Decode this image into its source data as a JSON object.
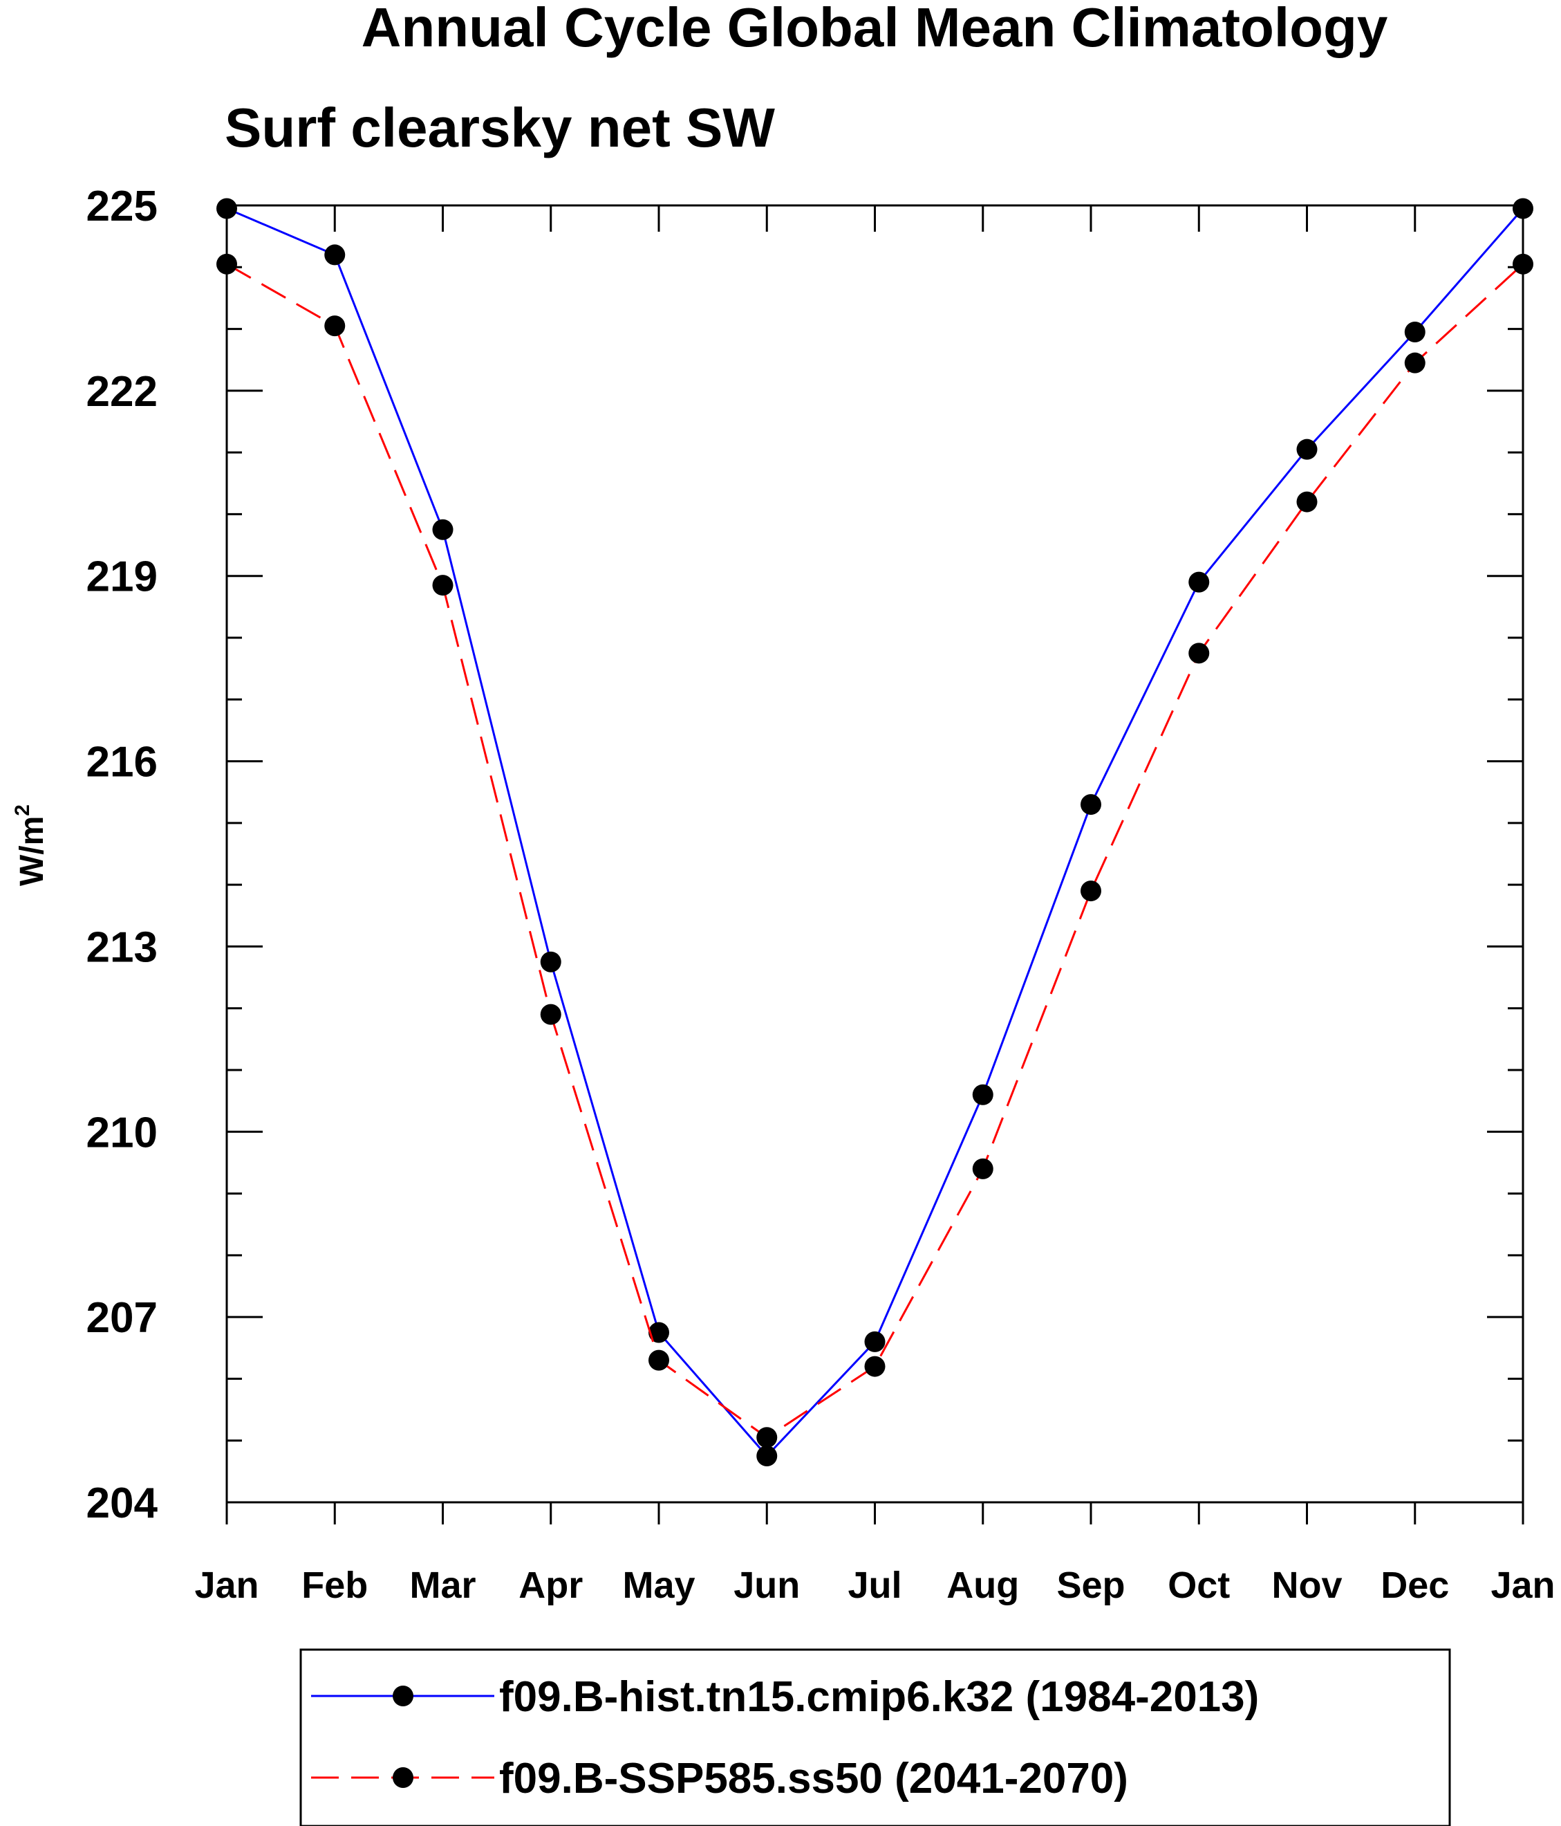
{
  "chart_data": {
    "type": "line",
    "title": "Annual Cycle Global Mean Climatology",
    "subtitle": "Surf clearsky net SW",
    "ylabel": "W/m",
    "ylabel_superscript": "2",
    "xlabel": "",
    "categories": [
      "Jan",
      "Feb",
      "Mar",
      "Apr",
      "May",
      "Jun",
      "Jul",
      "Aug",
      "Sep",
      "Oct",
      "Nov",
      "Dec",
      "Jan"
    ],
    "ylim": [
      204,
      225
    ],
    "yticks": [
      204,
      207,
      210,
      213,
      216,
      219,
      222,
      225
    ],
    "yminor_step": 1,
    "grid": false,
    "legend_position": "bottom",
    "series": [
      {
        "name": "f09.B-hist.tn15.cmip6.k32 (1984-2013)",
        "color": "#0000ff",
        "dash": "solid",
        "marker": "dot",
        "values": [
          224.95,
          224.2,
          219.75,
          212.75,
          206.75,
          204.75,
          206.6,
          210.6,
          215.3,
          218.9,
          221.05,
          222.95,
          224.95
        ]
      },
      {
        "name": "f09.B-SSP585.ss50 (2041-2070)",
        "color": "#ff0000",
        "dash": "dashed",
        "marker": "dot",
        "values": [
          224.05,
          223.05,
          218.85,
          211.9,
          206.3,
          205.05,
          206.2,
          209.4,
          213.9,
          217.75,
          220.2,
          222.45,
          224.05
        ]
      }
    ]
  }
}
